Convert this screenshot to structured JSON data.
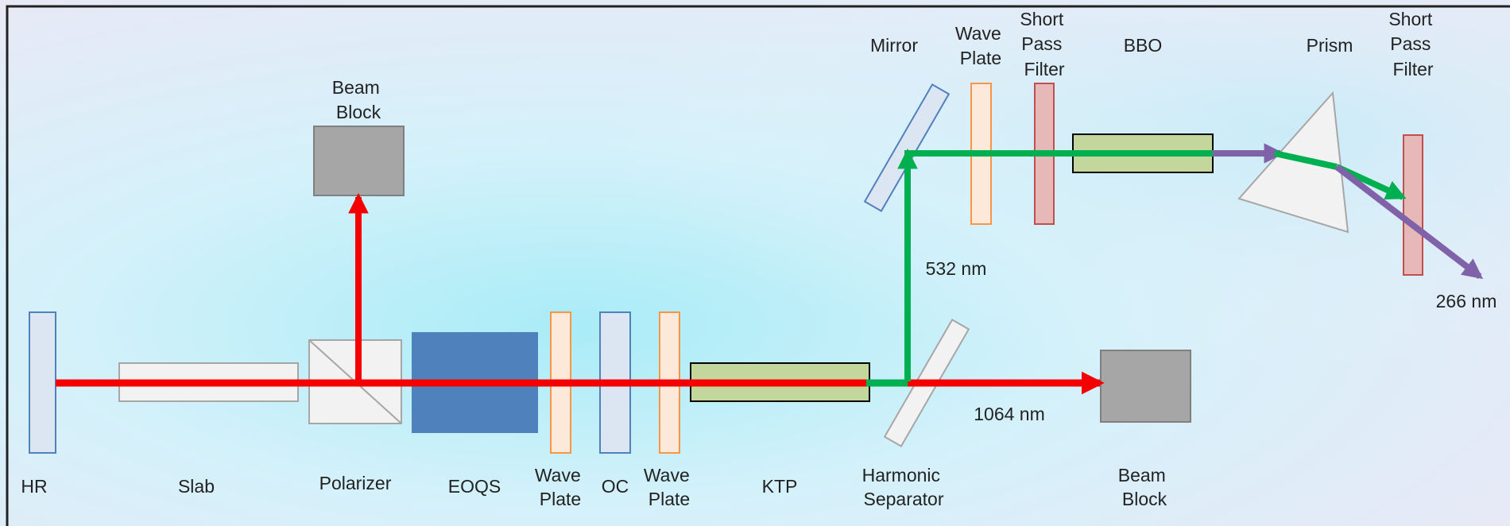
{
  "colors": {
    "fundamental_beam": "#f40000",
    "second_harmonic_beam": "#00b050",
    "third_harmonic_beam": "#7f62a8",
    "background_light": "#e6f4fb",
    "background_cyan": "#a9ecf7",
    "frame": "#222222"
  },
  "labels": {
    "hr": "HR",
    "slab": "Slab",
    "polarizer": "Polarizer",
    "eoqs": "EOQS",
    "wave_plate_1": [
      "Wave",
      "Plate"
    ],
    "oc": "OC",
    "wave_plate_2": [
      "Wave",
      "Plate"
    ],
    "ktp": "KTP",
    "harmonic_separator": [
      "Harmonic",
      "Separator"
    ],
    "beam_block_bottom": [
      "Beam",
      "Block"
    ],
    "beam_block_top": [
      "Beam",
      "Block"
    ],
    "mirror": "Mirror",
    "wave_plate_3": [
      "Wave",
      "Plate"
    ],
    "short_pass_filter_1": [
      "Short",
      "Pass",
      "Filter"
    ],
    "bbo": "BBO",
    "prism": "Prism",
    "short_pass_filter_2": [
      "Short",
      "Pass",
      "Filter"
    ],
    "wavelength_1064": "1064 nm",
    "wavelength_532": "532 nm",
    "wavelength_266": "266 nm"
  }
}
